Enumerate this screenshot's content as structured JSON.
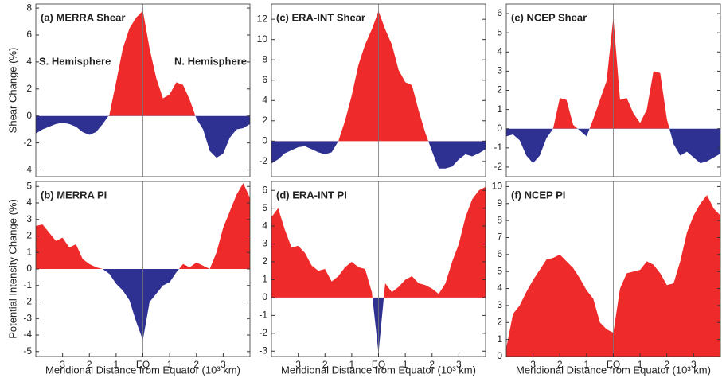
{
  "chart_data": [
    {
      "type": "area",
      "title": "(a) MERRA Shear",
      "ylabel": "Shear Change (%)",
      "annotations": [
        "S. Hemisphere",
        "N. Hemisphere"
      ],
      "positive_color": "#ee2a2a",
      "negative_color": "#2e3192",
      "x": [
        -4,
        -3.75,
        -3.5,
        -3.25,
        -3,
        -2.75,
        -2.5,
        -2.25,
        -2,
        -1.75,
        -1.5,
        -1.25,
        -1,
        -0.75,
        -0.5,
        -0.25,
        0,
        0.25,
        0.5,
        0.75,
        1,
        1.25,
        1.5,
        1.75,
        2,
        2.25,
        2.5,
        2.75,
        3,
        3.25,
        3.5,
        3.75,
        4
      ],
      "values": [
        -1.3,
        -1.0,
        -0.8,
        -0.6,
        -0.5,
        -0.6,
        -0.8,
        -1.2,
        -1.4,
        -1.2,
        -0.6,
        0.1,
        2.5,
        5.0,
        6.5,
        7.3,
        7.8,
        5.0,
        2.8,
        1.3,
        1.6,
        2.5,
        2.3,
        1.2,
        -0.2,
        -1.0,
        -2.6,
        -3.1,
        -2.8,
        -1.6,
        -1.0,
        -0.9,
        -0.6
      ],
      "xlim": [
        -4,
        4
      ],
      "ylim": [
        -4.5,
        8.3
      ],
      "yticks": [
        -4,
        -2,
        0,
        2,
        4,
        6,
        8
      ]
    },
    {
      "type": "area",
      "title": "(c) ERA-INT Shear",
      "positive_color": "#ee2a2a",
      "negative_color": "#2e3192",
      "x": [
        -4,
        -3.75,
        -3.5,
        -3.25,
        -3,
        -2.75,
        -2.5,
        -2.25,
        -2,
        -1.75,
        -1.5,
        -1.25,
        -1,
        -0.75,
        -0.5,
        -0.25,
        0,
        0.25,
        0.5,
        0.75,
        1,
        1.25,
        1.5,
        1.75,
        2,
        2.25,
        2.5,
        2.75,
        3,
        3.25,
        3.5,
        3.75,
        4
      ],
      "values": [
        -2.2,
        -1.8,
        -1.2,
        -0.9,
        -0.6,
        -0.5,
        -0.8,
        -1.1,
        -1.3,
        -1.1,
        0,
        2.0,
        4.5,
        7.5,
        9.5,
        11.0,
        12.8,
        11.0,
        9.5,
        7.0,
        5.8,
        5.5,
        3.0,
        0.8,
        -1.0,
        -2.7,
        -2.7,
        -2.5,
        -1.8,
        -1.3,
        -1.5,
        -1.2,
        -0.8
      ],
      "xlim": [
        -4,
        4
      ],
      "ylim": [
        -3.5,
        13.5
      ],
      "yticks": [
        -2,
        0,
        2,
        4,
        6,
        8,
        10,
        12
      ]
    },
    {
      "type": "area",
      "title": "(e) NCEP Shear",
      "positive_color": "#ee2a2a",
      "negative_color": "#2e3192",
      "x": [
        -4,
        -3.75,
        -3.5,
        -3.25,
        -3,
        -2.75,
        -2.5,
        -2.25,
        -2,
        -1.75,
        -1.5,
        -1.25,
        -1,
        -0.75,
        -0.5,
        -0.25,
        0,
        0.25,
        0.5,
        0.75,
        1,
        1.25,
        1.5,
        1.75,
        2,
        2.25,
        2.5,
        2.75,
        3,
        3.25,
        3.5,
        3.75,
        4
      ],
      "values": [
        -0.4,
        -0.3,
        -0.6,
        -1.4,
        -1.8,
        -1.4,
        -0.5,
        0,
        1.6,
        1.5,
        0.2,
        -0.1,
        -0.4,
        0.5,
        1.5,
        2.5,
        5.8,
        1.5,
        1.6,
        0.8,
        0.3,
        1.0,
        3.0,
        2.9,
        0.5,
        -0.8,
        -1.4,
        -1.2,
        -1.5,
        -1.8,
        -1.7,
        -1.5,
        -1.3
      ],
      "xlim": [
        -4,
        4
      ],
      "ylim": [
        -2.5,
        6.5
      ],
      "yticks": [
        -2,
        -1,
        0,
        1,
        2,
        3,
        4,
        5,
        6
      ]
    },
    {
      "type": "area",
      "title": "(b) MERRA PI",
      "ylabel": "Potential Intensity Change (%)",
      "xlabel": "Meridional Distance from Equator (10³ km)",
      "positive_color": "#ee2a2a",
      "negative_color": "#2e3192",
      "x": [
        -4,
        -3.75,
        -3.5,
        -3.25,
        -3,
        -2.75,
        -2.5,
        -2.25,
        -2,
        -1.75,
        -1.5,
        -1.25,
        -1,
        -0.75,
        -0.5,
        -0.25,
        0,
        0.25,
        0.5,
        0.75,
        1,
        1.25,
        1.5,
        1.75,
        2,
        2.25,
        2.5,
        2.75,
        3,
        3.25,
        3.5,
        3.75,
        4
      ],
      "values": [
        2.6,
        2.7,
        2.2,
        1.7,
        1.9,
        1.3,
        1.5,
        0.6,
        0.3,
        0.1,
        0,
        -0.3,
        -0.9,
        -1.3,
        -1.9,
        -3.2,
        -4.3,
        -2.0,
        -1.5,
        -1.0,
        -0.8,
        -0.2,
        0.3,
        0.1,
        0.4,
        0.2,
        0,
        1.0,
        2.5,
        3.5,
        4.5,
        5.2,
        4.3
      ],
      "xlim": [
        -4,
        4
      ],
      "ylim": [
        -5.3,
        5.3
      ],
      "yticks": [
        -5,
        -4,
        -3,
        -2,
        -1,
        0,
        1,
        2,
        3,
        4,
        5
      ],
      "xticks": [
        {
          "value": -3,
          "label": "3"
        },
        {
          "value": -2,
          "label": "2"
        },
        {
          "value": -1,
          "label": "1"
        },
        {
          "value": 0,
          "label": "EQ"
        },
        1,
        2,
        3
      ]
    },
    {
      "type": "area",
      "title": "(d) ERA-INT PI",
      "xlabel": "Meridional Distance from Equator (10³ km)",
      "positive_color": "#ee2a2a",
      "negative_color": "#2e3192",
      "x": [
        -4,
        -3.75,
        -3.5,
        -3.25,
        -3,
        -2.75,
        -2.5,
        -2.25,
        -2,
        -1.75,
        -1.5,
        -1.25,
        -1,
        -0.75,
        -0.5,
        -0.25,
        0,
        0.25,
        0.5,
        0.75,
        1,
        1.25,
        1.5,
        1.75,
        2,
        2.25,
        2.5,
        2.75,
        3,
        3.25,
        3.5,
        3.75,
        4
      ],
      "values": [
        4.5,
        5.0,
        3.8,
        2.8,
        2.9,
        2.5,
        1.8,
        1.5,
        1.6,
        0.9,
        1.2,
        1.7,
        2.0,
        1.7,
        1.6,
        0.3,
        -3.1,
        0.8,
        0.3,
        0.6,
        1.0,
        1.2,
        0.8,
        0.7,
        0.5,
        0.2,
        0.8,
        2.0,
        3.0,
        4.5,
        5.5,
        6.0,
        6.2
      ],
      "xlim": [
        -4,
        4
      ],
      "ylim": [
        -3.3,
        6.5
      ],
      "yticks": [
        -3,
        -2,
        -1,
        0,
        1,
        2,
        3,
        4,
        5,
        6
      ],
      "xticks": [
        {
          "value": -3,
          "label": "3"
        },
        {
          "value": -2,
          "label": "2"
        },
        {
          "value": -1,
          "label": "1"
        },
        {
          "value": 0,
          "label": "EQ"
        },
        1,
        2,
        3
      ]
    },
    {
      "type": "area",
      "title": "(f) NCEP PI",
      "xlabel": "Meridional Distance from Equator (10³ km)",
      "positive_color": "#ee2a2a",
      "negative_color": "#2e3192",
      "x": [
        -4,
        -3.75,
        -3.5,
        -3.25,
        -3,
        -2.75,
        -2.5,
        -2.25,
        -2,
        -1.75,
        -1.5,
        -1.25,
        -1,
        -0.75,
        -0.5,
        -0.25,
        0,
        0.25,
        0.5,
        0.75,
        1,
        1.25,
        1.5,
        1.75,
        2,
        2.25,
        2.5,
        2.75,
        3,
        3.25,
        3.5,
        3.75,
        4
      ],
      "values": [
        0.5,
        2.5,
        3.0,
        3.8,
        4.5,
        5.1,
        5.7,
        5.8,
        6.0,
        5.6,
        5.2,
        4.6,
        3.9,
        3.4,
        2.0,
        1.6,
        1.4,
        4.0,
        4.9,
        5.0,
        5.1,
        5.6,
        5.4,
        4.9,
        4.2,
        4.3,
        5.6,
        7.3,
        8.3,
        9.0,
        9.5,
        8.7,
        8.3
      ],
      "xlim": [
        -4,
        4
      ],
      "ylim": [
        0,
        10.3
      ],
      "yticks": [
        0,
        1,
        2,
        3,
        4,
        5,
        6,
        7,
        8,
        9,
        10
      ],
      "xticks": [
        {
          "value": -3,
          "label": "3"
        },
        {
          "value": -2,
          "label": "2"
        },
        {
          "value": -1,
          "label": "1"
        },
        {
          "value": 0,
          "label": "EQ"
        },
        1,
        2,
        3
      ]
    }
  ]
}
